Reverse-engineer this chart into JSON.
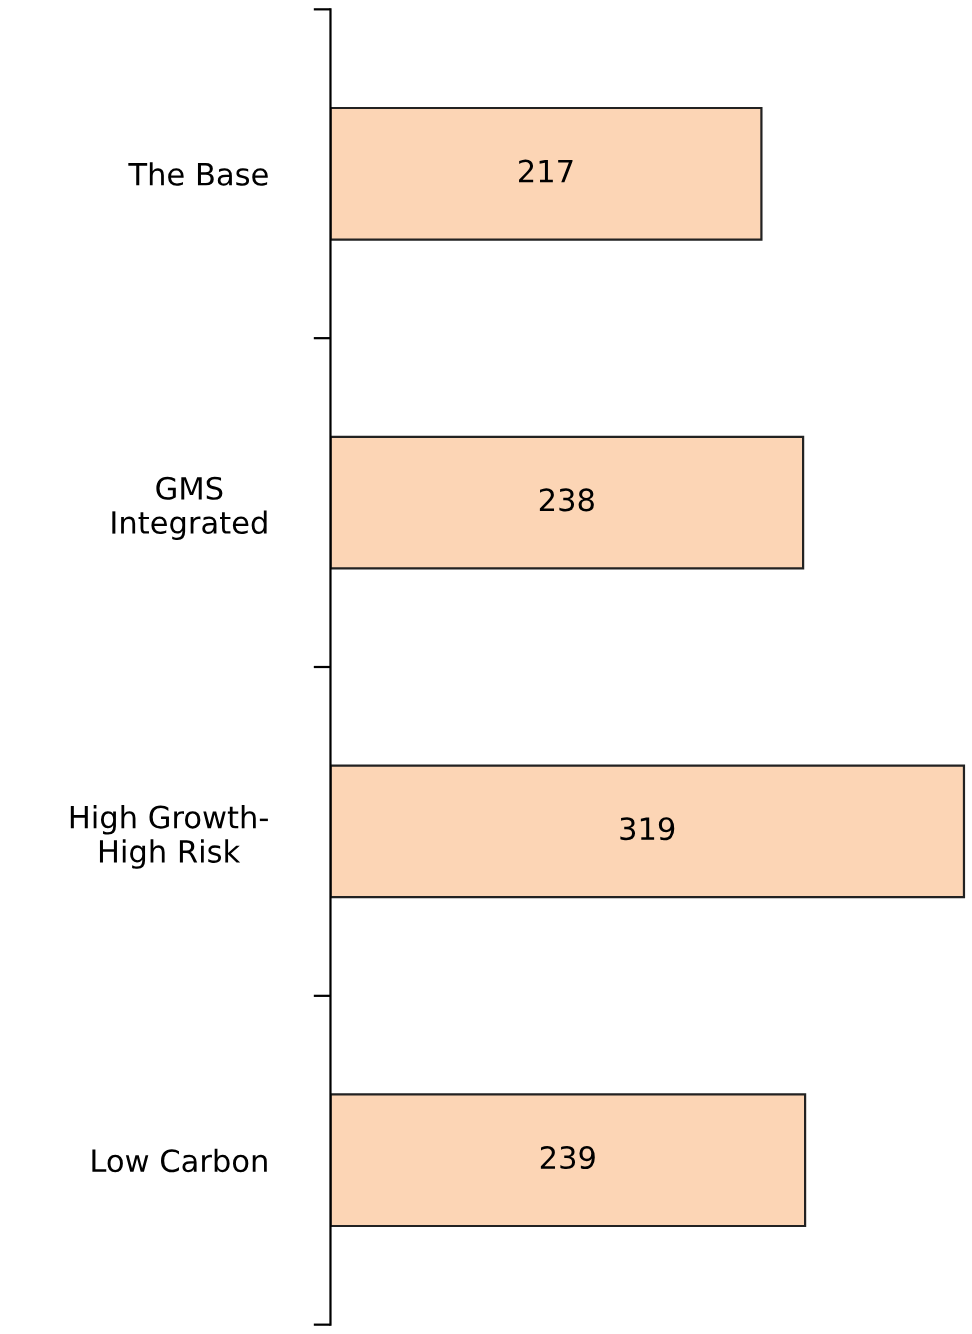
{
  "chart_data": {
    "type": "bar",
    "orientation": "horizontal",
    "categories": [
      "The Base",
      "GMS\nIntegrated",
      "High Growth-\nHigh Risk",
      "Low Carbon"
    ],
    "values": [
      217,
      238,
      319,
      239
    ],
    "color": "#fcd5b5",
    "data_labels": true,
    "tick_labels": "y",
    "grid": false,
    "legend": false
  }
}
